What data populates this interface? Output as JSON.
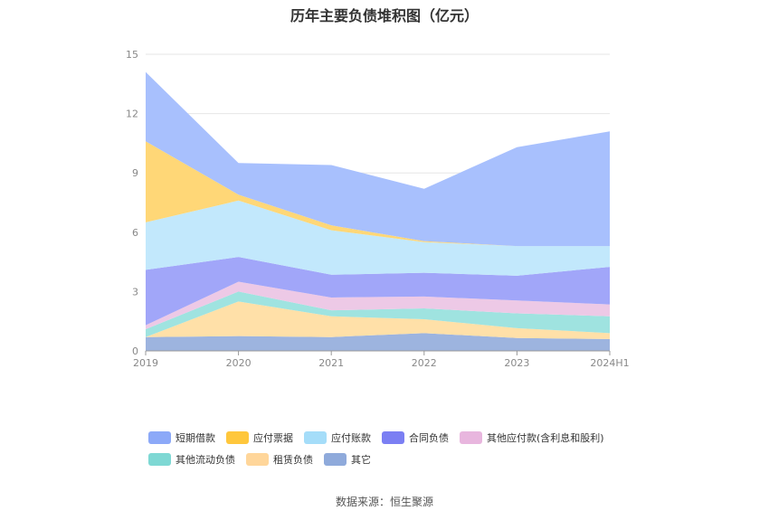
{
  "title": "历年主要负债堆积图（亿元）",
  "source": "数据来源：恒生聚源",
  "chart_data": {
    "type": "area",
    "stacked": true,
    "categories": [
      "2019",
      "2020",
      "2021",
      "2022",
      "2023",
      "2024H1"
    ],
    "yticks": [
      "0",
      "3",
      "6",
      "9",
      "12",
      "15"
    ],
    "ylim": [
      0,
      15
    ],
    "grid": true,
    "legend_position": "bottom",
    "series": [
      {
        "name": "其它",
        "color": "#9DB4DF",
        "values": [
          0.7,
          0.75,
          0.7,
          0.9,
          0.65,
          0.6
        ]
      },
      {
        "name": "租赁负债",
        "color": "#FFE0A8",
        "values": [
          0.0,
          1.75,
          1.05,
          0.7,
          0.5,
          0.3
        ]
      },
      {
        "name": "其他流动负债",
        "color": "#9FE3E0",
        "values": [
          0.4,
          0.5,
          0.3,
          0.55,
          0.75,
          0.85
        ]
      },
      {
        "name": "其他应付款(含利息和股利)",
        "color": "#EDC9E6",
        "values": [
          0.2,
          0.5,
          0.65,
          0.6,
          0.65,
          0.6
        ]
      },
      {
        "name": "合同负债",
        "color": "#A1A6F9",
        "values": [
          2.8,
          1.25,
          1.15,
          1.2,
          1.25,
          1.9
        ]
      },
      {
        "name": "应付账款",
        "color": "#C2E8FC",
        "values": [
          2.4,
          2.85,
          2.25,
          1.55,
          1.5,
          1.05
        ]
      },
      {
        "name": "应付票据",
        "color": "#FFD777",
        "values": [
          4.1,
          0.3,
          0.25,
          0.05,
          0.0,
          0.0
        ]
      },
      {
        "name": "短期借款",
        "color": "#A8C0FD",
        "values": [
          3.5,
          1.6,
          3.05,
          2.65,
          5.0,
          5.8
        ]
      }
    ]
  },
  "legend": {
    "row1": [
      {
        "label": "短期借款",
        "color": "#8CA9F8"
      },
      {
        "label": "应付票据",
        "color": "#FFC73C"
      },
      {
        "label": "应付账款",
        "color": "#A5DDF9"
      },
      {
        "label": "合同负债",
        "color": "#7B7FF3"
      },
      {
        "label": "其他应付款(含利息和股利)",
        "color": "#E8B6DE"
      }
    ],
    "row2": [
      {
        "label": "其他流动负债",
        "color": "#7ED8D4"
      },
      {
        "label": "租赁负债",
        "color": "#FFD69A"
      },
      {
        "label": "其它",
        "color": "#8FAADB"
      }
    ]
  }
}
